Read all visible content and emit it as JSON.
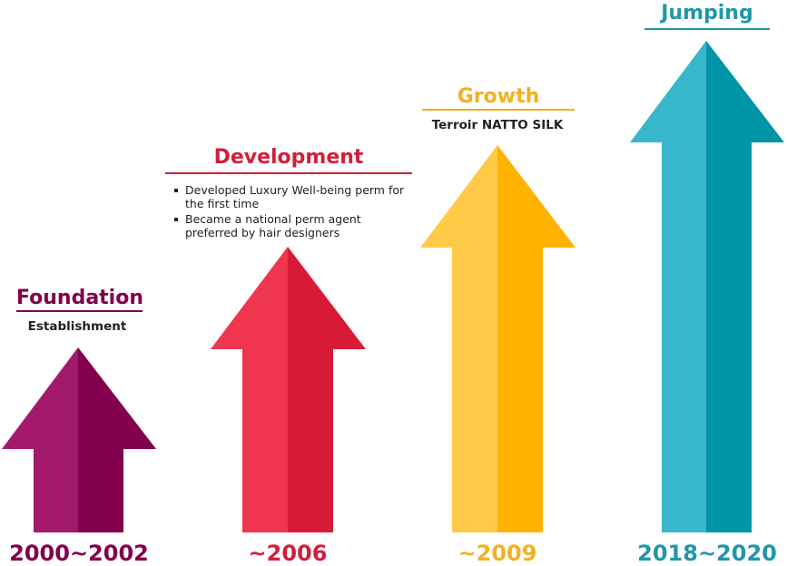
{
  "stages": [
    {
      "title": "Foundation",
      "description": "Establishment",
      "year": "2000~2002",
      "color_light": "#a3196e",
      "color_dark": "#82004c",
      "title_color": "#82004c"
    },
    {
      "title": "Development",
      "bullets": [
        "Developed Luxury Well-being perm for the first time",
        "Became a national perm agent preferred by hair designers"
      ],
      "year": "~2006",
      "color_light": "#f0354e",
      "color_dark": "#d91a36",
      "title_color": "#d11f3a"
    },
    {
      "title": "Growth",
      "description": "Terroir NATTO SILK",
      "year": "~2009",
      "color_light": "#ffca47",
      "color_dark": "#ffb300",
      "title_color": "#f3b121"
    },
    {
      "title": "Jumping",
      "year": "2018~2020",
      "color_light": "#38b7cc",
      "color_dark": "#0095a6",
      "title_color": "#1f97a8"
    }
  ]
}
